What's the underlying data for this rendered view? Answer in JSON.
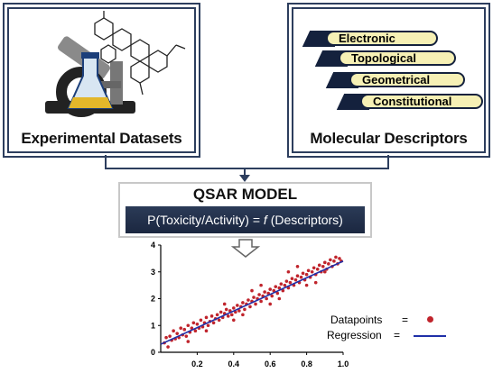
{
  "panels": {
    "experimental": {
      "label": "Experimental Datasets"
    },
    "molecular": {
      "label": "Molecular Descriptors",
      "descriptors": [
        "Electronic",
        "Topological",
        "Geometrical",
        "Constitutional"
      ]
    }
  },
  "qsar": {
    "title": "QSAR MODEL",
    "equation_prefix": "P(Toxicity/Activity) = ",
    "equation_f": "f",
    "equation_suffix": " (Descriptors)"
  },
  "legend": {
    "datapoints_label": "Datapoints",
    "datapoints_eq": "=",
    "regression_label": "Regression",
    "regression_eq": "="
  },
  "colors": {
    "frame": "#2d3e5e",
    "datapoint": "#c0242c",
    "regression": "#1f2fa8",
    "pill_fill": "#f6f0b5"
  },
  "chart_data": {
    "type": "scatter",
    "title": "",
    "xlabel": "",
    "ylabel": "",
    "xlim": [
      0,
      1.0
    ],
    "ylim": [
      0,
      4
    ],
    "x_ticks": [
      "0.2",
      "0.4",
      "0.6",
      "0.8",
      "1.0"
    ],
    "y_ticks": [
      "0",
      "1",
      "2",
      "3",
      "4"
    ],
    "regression": {
      "slope": 3.1,
      "intercept": 0.3
    },
    "series": [
      {
        "name": "Datapoints",
        "points": [
          [
            0.02,
            0.35
          ],
          [
            0.03,
            0.55
          ],
          [
            0.04,
            0.2
          ],
          [
            0.05,
            0.6
          ],
          [
            0.06,
            0.45
          ],
          [
            0.07,
            0.8
          ],
          [
            0.08,
            0.5
          ],
          [
            0.09,
            0.7
          ],
          [
            0.1,
            0.55
          ],
          [
            0.11,
            0.9
          ],
          [
            0.12,
            0.65
          ],
          [
            0.13,
            0.85
          ],
          [
            0.14,
            0.6
          ],
          [
            0.15,
            1.0
          ],
          [
            0.16,
            0.75
          ],
          [
            0.17,
            0.9
          ],
          [
            0.18,
            1.1
          ],
          [
            0.19,
            0.8
          ],
          [
            0.2,
            1.05
          ],
          [
            0.21,
            0.9
          ],
          [
            0.22,
            1.2
          ],
          [
            0.23,
            0.95
          ],
          [
            0.24,
            1.1
          ],
          [
            0.25,
            1.3
          ],
          [
            0.26,
            1.0
          ],
          [
            0.27,
            1.15
          ],
          [
            0.28,
            1.35
          ],
          [
            0.29,
            1.1
          ],
          [
            0.3,
            1.25
          ],
          [
            0.31,
            1.4
          ],
          [
            0.32,
            1.2
          ],
          [
            0.33,
            1.5
          ],
          [
            0.34,
            1.3
          ],
          [
            0.35,
            1.45
          ],
          [
            0.36,
            1.6
          ],
          [
            0.37,
            1.35
          ],
          [
            0.38,
            1.55
          ],
          [
            0.39,
            1.4
          ],
          [
            0.4,
            1.65
          ],
          [
            0.41,
            1.5
          ],
          [
            0.42,
            1.75
          ],
          [
            0.43,
            1.55
          ],
          [
            0.44,
            1.7
          ],
          [
            0.45,
            1.85
          ],
          [
            0.46,
            1.6
          ],
          [
            0.47,
            1.8
          ],
          [
            0.48,
            1.95
          ],
          [
            0.49,
            1.7
          ],
          [
            0.5,
            1.9
          ],
          [
            0.51,
            2.05
          ],
          [
            0.52,
            1.8
          ],
          [
            0.53,
            2.0
          ],
          [
            0.54,
            2.15
          ],
          [
            0.55,
            1.9
          ],
          [
            0.56,
            2.1
          ],
          [
            0.57,
            2.25
          ],
          [
            0.58,
            2.0
          ],
          [
            0.59,
            2.2
          ],
          [
            0.6,
            2.35
          ],
          [
            0.61,
            2.1
          ],
          [
            0.62,
            2.3
          ],
          [
            0.63,
            2.45
          ],
          [
            0.64,
            2.2
          ],
          [
            0.65,
            2.4
          ],
          [
            0.66,
            2.55
          ],
          [
            0.67,
            2.3
          ],
          [
            0.68,
            2.5
          ],
          [
            0.69,
            2.65
          ],
          [
            0.7,
            2.4
          ],
          [
            0.71,
            2.6
          ],
          [
            0.72,
            2.75
          ],
          [
            0.73,
            2.5
          ],
          [
            0.74,
            2.7
          ],
          [
            0.75,
            2.85
          ],
          [
            0.76,
            2.6
          ],
          [
            0.77,
            2.8
          ],
          [
            0.78,
            2.95
          ],
          [
            0.79,
            2.7
          ],
          [
            0.8,
            2.9
          ],
          [
            0.81,
            3.05
          ],
          [
            0.82,
            2.8
          ],
          [
            0.83,
            3.0
          ],
          [
            0.84,
            3.15
          ],
          [
            0.85,
            2.9
          ],
          [
            0.86,
            3.1
          ],
          [
            0.87,
            3.25
          ],
          [
            0.88,
            3.0
          ],
          [
            0.89,
            3.2
          ],
          [
            0.9,
            3.35
          ],
          [
            0.91,
            3.1
          ],
          [
            0.92,
            3.3
          ],
          [
            0.93,
            3.45
          ],
          [
            0.94,
            3.2
          ],
          [
            0.95,
            3.4
          ],
          [
            0.96,
            3.55
          ],
          [
            0.97,
            3.3
          ],
          [
            0.98,
            3.5
          ],
          [
            0.99,
            3.4
          ],
          [
            0.35,
            1.8
          ],
          [
            0.45,
            1.4
          ],
          [
            0.55,
            2.5
          ],
          [
            0.65,
            2.0
          ],
          [
            0.75,
            3.2
          ],
          [
            0.85,
            2.6
          ],
          [
            0.25,
            0.8
          ],
          [
            0.15,
            0.4
          ],
          [
            0.6,
            1.8
          ],
          [
            0.7,
            3.0
          ],
          [
            0.8,
            2.5
          ],
          [
            0.9,
            3.0
          ],
          [
            0.5,
            2.3
          ],
          [
            0.4,
            1.2
          ]
        ]
      }
    ]
  }
}
